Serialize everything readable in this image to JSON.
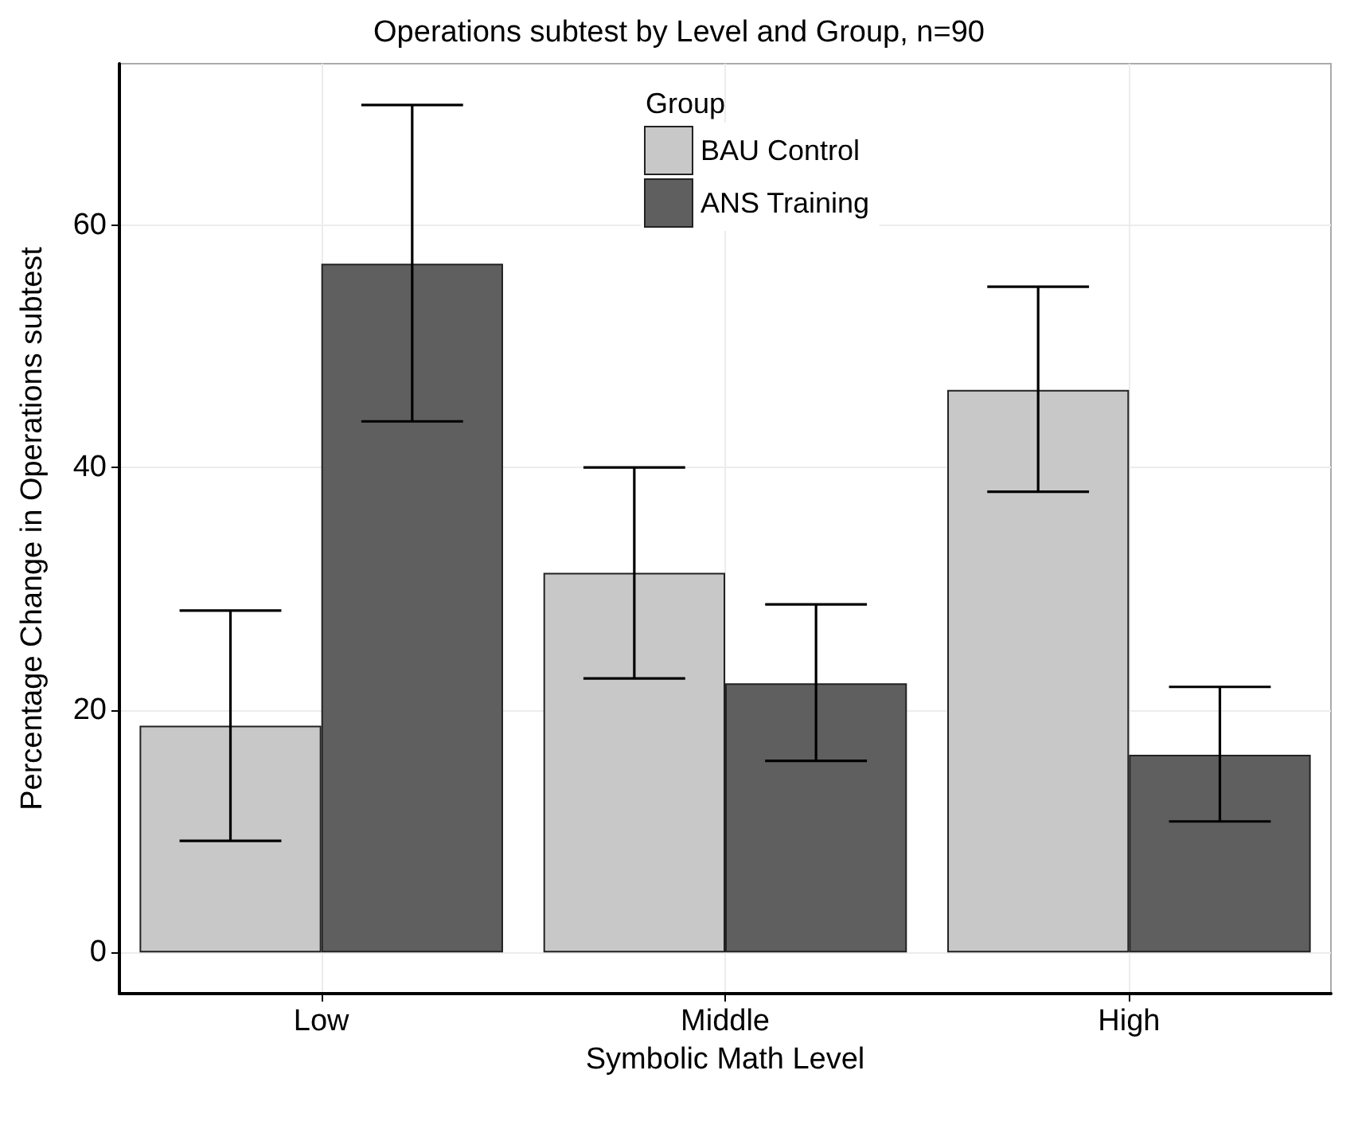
{
  "chart_data": {
    "type": "bar",
    "title": "Operations subtest by Level and Group, n=90",
    "xlabel": "Symbolic Math Level",
    "ylabel": "Percentage Change in Operations subtest",
    "legend_title": "Group",
    "categories": [
      "Low",
      "Middle",
      "High"
    ],
    "series": [
      {
        "name": "BAU Control",
        "color": "#c8c8c8",
        "values": [
          18.7,
          31.3,
          46.4
        ],
        "errors": [
          [
            9.2,
            28.2
          ],
          [
            22.6,
            40.0
          ],
          [
            38.0,
            54.9
          ]
        ]
      },
      {
        "name": "ANS Training",
        "color": "#5f5f5f",
        "values": [
          56.8,
          22.2,
          16.3
        ],
        "errors": [
          [
            43.8,
            69.9
          ],
          [
            15.8,
            28.7
          ],
          [
            10.8,
            21.9
          ]
        ]
      }
    ],
    "ylim": [
      -3.4,
      73.3
    ],
    "yticks": [
      0,
      20,
      40,
      60
    ],
    "grid": true,
    "legend": "top"
  }
}
